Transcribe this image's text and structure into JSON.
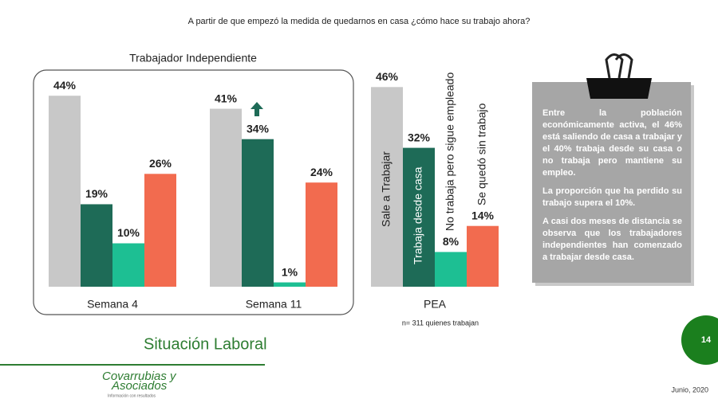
{
  "question": "A partir de que empezó la medida de quedarnos en casa ¿cómo hace su trabajo ahora?",
  "chart_data": [
    {
      "type": "bar",
      "title": "Trabajador Independiente",
      "categories": [
        "Semana 4",
        "Semana 11"
      ],
      "series": [
        {
          "color": "#c8c8c8",
          "values": [
            44,
            41
          ],
          "value_labels": [
            "44%",
            "41%"
          ]
        },
        {
          "color": "#1e6b57",
          "values": [
            19,
            34
          ],
          "value_labels": [
            "19%",
            "34%"
          ]
        },
        {
          "color": "#1dbf93",
          "values": [
            10,
            1
          ],
          "value_labels": [
            "10%",
            "1%"
          ]
        },
        {
          "color": "#f26b4f",
          "values": [
            26,
            24
          ],
          "value_labels": [
            "26%",
            "24%"
          ]
        }
      ]
    },
    {
      "type": "bar",
      "categories": [
        "PEA"
      ],
      "note": "n= 311 quienes trabajan",
      "series": [
        {
          "name": "Sale a Trabajar",
          "color": "#c8c8c8",
          "values": [
            46
          ],
          "value_labels": [
            "46%"
          ]
        },
        {
          "name": "Trabaja desde casa",
          "color": "#1e6b57",
          "values": [
            32
          ],
          "value_labels": [
            "32%"
          ]
        },
        {
          "name": "No trabaja pero sigue empleado",
          "color": "#1dbf93",
          "values": [
            8
          ],
          "value_labels": [
            "8%"
          ]
        },
        {
          "name": "Se quedó sin trabajo",
          "color": "#f26b4f",
          "values": [
            14
          ],
          "value_labels": [
            "14%"
          ]
        }
      ]
    }
  ],
  "note_box": {
    "paragraphs": [
      "Entre la población económicamente activa, el 46% está saliendo de casa a trabajar y el 40% trabaja desde su casa o no trabaja pero mantiene su empleo.",
      "La proporción que ha perdido su trabajo supera el 10%.",
      "A casi dos meses de distancia se observa que los trabajadores independientes han comenzado a trabajar desde casa."
    ]
  },
  "section_title": "Situación Laboral",
  "logo": {
    "line1": "Covarrubias y",
    "line2": "Asociados",
    "tagline": "Información con resultados"
  },
  "page_number": "14",
  "date": "Junio, 2020"
}
